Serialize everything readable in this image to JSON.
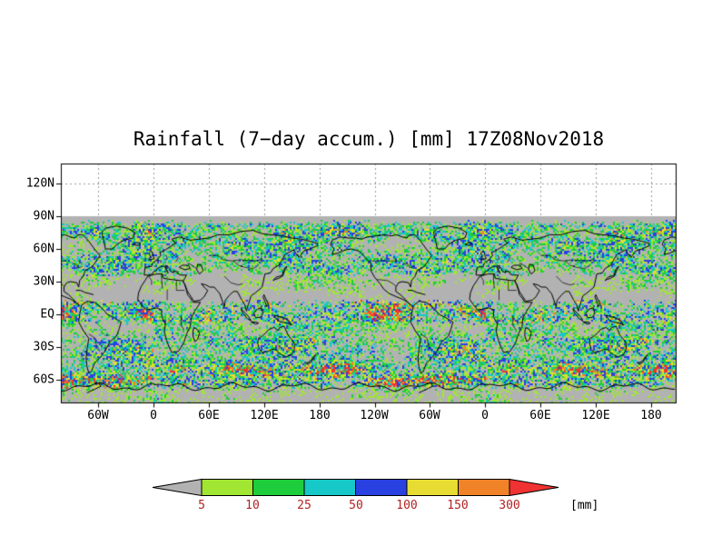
{
  "title": "Rainfall (7−day accum.) [mm] 17Z08Nov2018",
  "axes": {
    "y_ticks": [
      "120N",
      "90N",
      "60N",
      "30N",
      "EQ",
      "30S",
      "60S"
    ],
    "x_ticks": [
      "60W",
      "0",
      "60E",
      "120E",
      "180",
      "120W",
      "60W",
      "0",
      "60E",
      "120E",
      "180"
    ]
  },
  "map": {
    "background_gray": "#b2b2b2",
    "out_of_range_white": "#ffffff",
    "grid_color": "#999999",
    "coastline_color": "#000000",
    "frame_color": "#000000"
  },
  "colorbar": {
    "values": [
      "5",
      "10",
      "25",
      "50",
      "100",
      "150",
      "300"
    ],
    "unit_label": "[mm]",
    "value_label_color": "#b22222",
    "colors": {
      "below_min": "#b2b2b2",
      "bins": [
        "#a0e632",
        "#1ecd3c",
        "#16c8c8",
        "#2841e0",
        "#e6dc32",
        "#f08228"
      ],
      "above_max": "#f03232"
    }
  }
}
